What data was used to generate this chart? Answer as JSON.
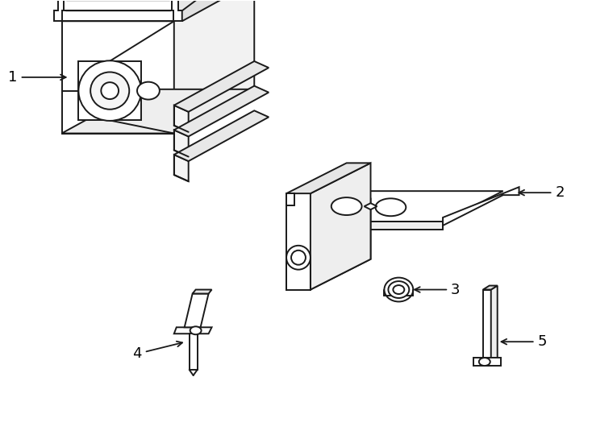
{
  "background_color": "#ffffff",
  "line_color": "#1a1a1a",
  "line_width": 1.4,
  "figsize": [
    7.34,
    5.4
  ],
  "dpi": 100
}
